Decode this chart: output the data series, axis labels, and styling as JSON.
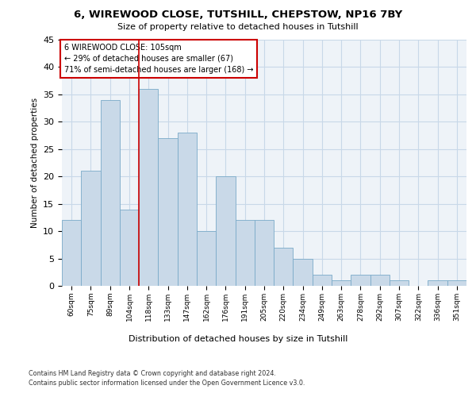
{
  "title1": "6, WIREWOOD CLOSE, TUTSHILL, CHEPSTOW, NP16 7BY",
  "title2": "Size of property relative to detached houses in Tutshill",
  "xlabel": "Distribution of detached houses by size in Tutshill",
  "ylabel": "Number of detached properties",
  "categories": [
    "60sqm",
    "75sqm",
    "89sqm",
    "104sqm",
    "118sqm",
    "133sqm",
    "147sqm",
    "162sqm",
    "176sqm",
    "191sqm",
    "205sqm",
    "220sqm",
    "234sqm",
    "249sqm",
    "263sqm",
    "278sqm",
    "292sqm",
    "307sqm",
    "322sqm",
    "336sqm",
    "351sqm"
  ],
  "values": [
    12,
    21,
    34,
    14,
    36,
    27,
    28,
    10,
    20,
    12,
    12,
    7,
    5,
    2,
    1,
    2,
    2,
    1,
    0,
    1,
    1
  ],
  "bar_color": "#c9d9e8",
  "bar_edge_color": "#7aaac8",
  "property_line_x": 3.5,
  "annotation_line1": "6 WIREWOOD CLOSE: 105sqm",
  "annotation_line2": "← 29% of detached houses are smaller (67)",
  "annotation_line3": "71% of semi-detached houses are larger (168) →",
  "annotation_box_color": "#ffffff",
  "annotation_box_edge": "#cc0000",
  "red_line_color": "#cc0000",
  "grid_color": "#c8d8e8",
  "background_color": "#eef3f8",
  "footer1": "Contains HM Land Registry data © Crown copyright and database right 2024.",
  "footer2": "Contains public sector information licensed under the Open Government Licence v3.0.",
  "ylim": [
    0,
    45
  ],
  "yticks": [
    0,
    5,
    10,
    15,
    20,
    25,
    30,
    35,
    40,
    45
  ]
}
